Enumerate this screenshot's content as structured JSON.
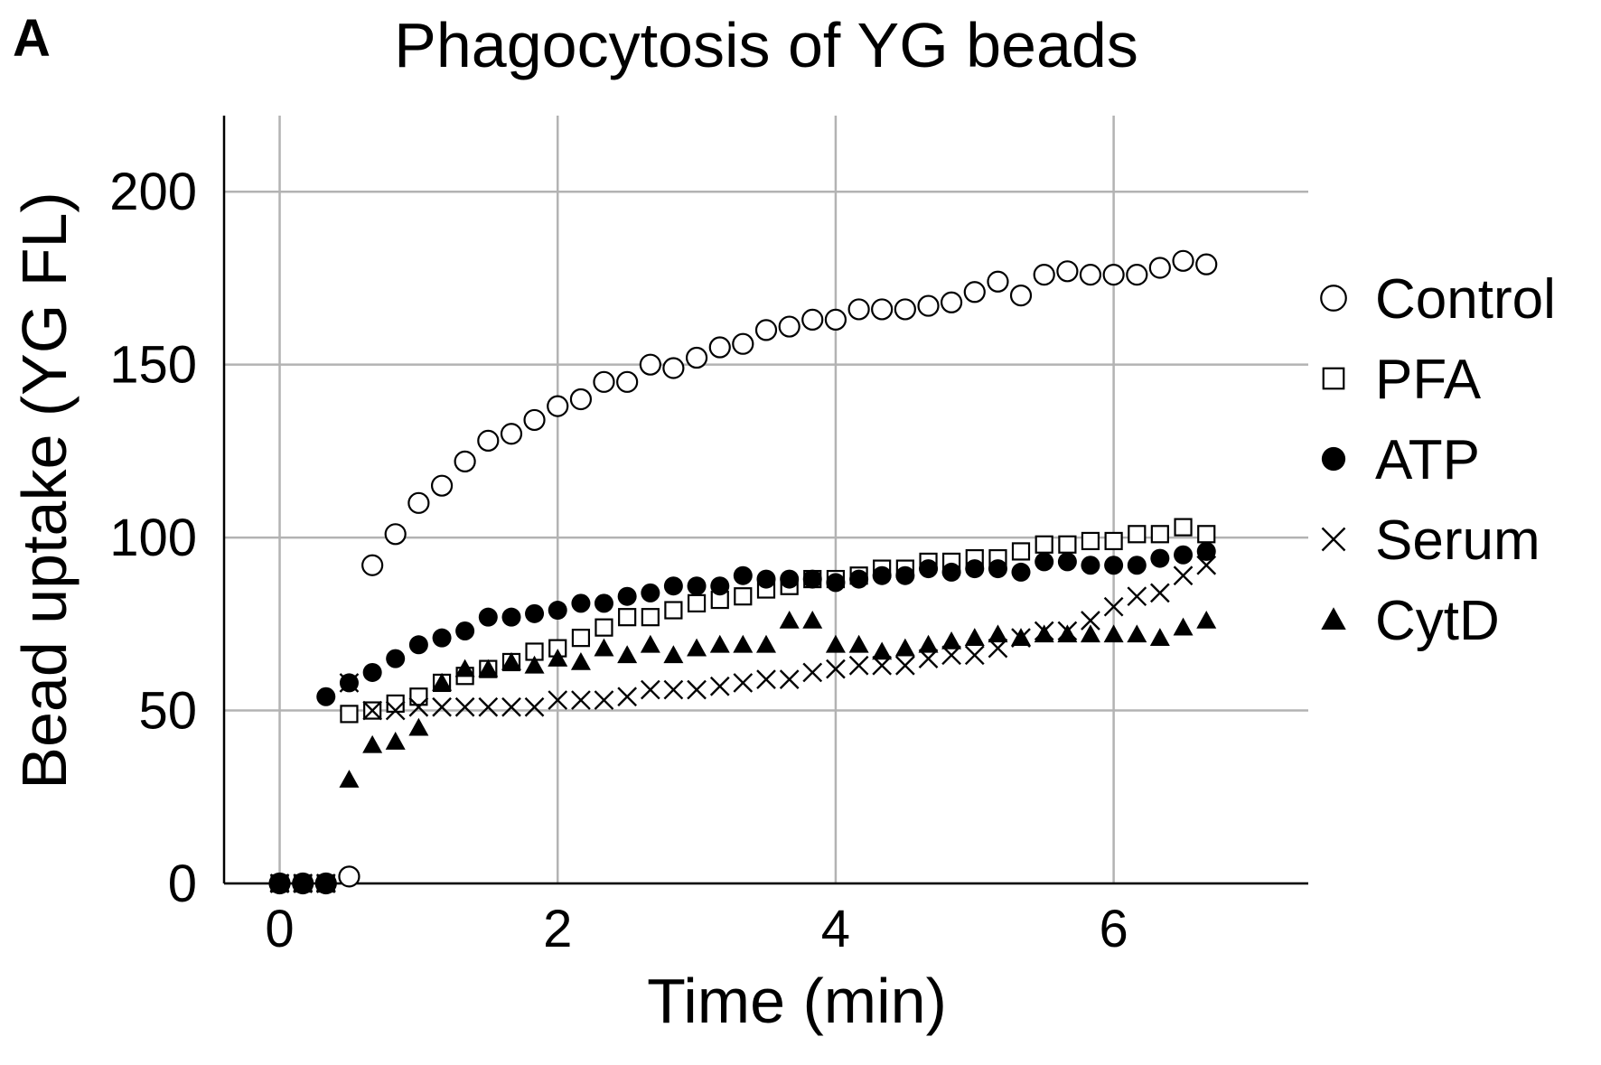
{
  "panel_label": "A",
  "chart_data": {
    "type": "scatter",
    "title": "Phagocytosis of YG beads",
    "xlabel": "Time (min)",
    "ylabel": "Bead uptake (YG FL)",
    "xlim": [
      -0.4,
      7.4
    ],
    "ylim": [
      0,
      222
    ],
    "xticks": [
      0,
      2,
      4,
      6
    ],
    "xtick_labels": [
      "0",
      "2",
      "4",
      "6"
    ],
    "yticks": [
      0,
      50,
      100,
      150,
      200
    ],
    "ytick_labels": [
      "0",
      "50",
      "100",
      "150",
      "200"
    ],
    "grid": true,
    "legend_position": "right",
    "x": [
      0,
      0.167,
      0.333,
      0.5,
      0.667,
      0.833,
      1,
      1.167,
      1.333,
      1.5,
      1.667,
      1.833,
      2,
      2.167,
      2.333,
      2.5,
      2.667,
      2.833,
      3,
      3.167,
      3.333,
      3.5,
      3.667,
      3.833,
      4,
      4.167,
      4.333,
      4.5,
      4.667,
      4.833,
      5,
      5.167,
      5.333,
      5.5,
      5.667,
      5.833,
      6,
      6.167,
      6.333,
      6.5,
      6.667
    ],
    "series": [
      {
        "name": "Control",
        "marker": "circle-open",
        "values": [
          0,
          0,
          0,
          2,
          92,
          101,
          110,
          115,
          122,
          128,
          130,
          134,
          138,
          140,
          145,
          145,
          150,
          149,
          152,
          155,
          156,
          160,
          161,
          163,
          163,
          166,
          166,
          166,
          167,
          168,
          171,
          174,
          170,
          176,
          177,
          176,
          176,
          176,
          178,
          180,
          179
        ]
      },
      {
        "name": "PFA",
        "marker": "square-open",
        "values": [
          0,
          0,
          0,
          49,
          50,
          52,
          54,
          58,
          60,
          62,
          64,
          67,
          68,
          71,
          74,
          77,
          77,
          79,
          81,
          82,
          83,
          85,
          86,
          88,
          88,
          89,
          91,
          91,
          93,
          93,
          94,
          94,
          96,
          98,
          98,
          99,
          99,
          101,
          101,
          103,
          101
        ]
      },
      {
        "name": "ATP",
        "marker": "circle-filled",
        "values": [
          0,
          0,
          0,
          58,
          61,
          65,
          69,
          71,
          73,
          77,
          77,
          78,
          79,
          81,
          81,
          83,
          84,
          86,
          86,
          86,
          89,
          88,
          88,
          88,
          87,
          88,
          89,
          89,
          91,
          90,
          91,
          91,
          90,
          93,
          93,
          92,
          92,
          92,
          94,
          95,
          96
        ]
      },
      {
        "name": "Serum",
        "marker": "x",
        "values": [
          0,
          0,
          0,
          58,
          50,
          50,
          51,
          51,
          51,
          51,
          51,
          51,
          53,
          53,
          53,
          54,
          56,
          56,
          56,
          57,
          58,
          59,
          59,
          61,
          62,
          63,
          63,
          63,
          65,
          66,
          66,
          68,
          71,
          73,
          73,
          76,
          80,
          83,
          84,
          89,
          92
        ]
      },
      {
        "name": "CytD",
        "marker": "triangle-filled",
        "values": [
          0,
          0,
          0,
          30,
          40,
          41,
          45,
          58,
          62,
          62,
          64,
          63,
          65,
          64,
          68,
          66,
          69,
          66,
          68,
          69,
          69,
          69,
          76,
          76,
          69,
          69,
          67,
          68,
          69,
          70,
          71,
          72,
          71,
          72,
          72,
          72,
          72,
          72,
          71,
          74,
          76
        ]
      }
    ],
    "extra_points": {
      "ATP": [
        [
          0.333,
          54
        ]
      ]
    }
  }
}
